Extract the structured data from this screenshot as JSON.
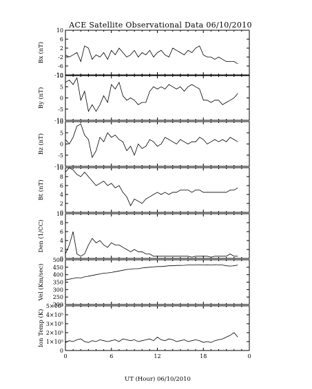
{
  "chart_data": {
    "type": "line",
    "title": "ACE Satellite Observational Data   06/10/2010",
    "xlabel": "UT (Hour)   06/10/2010",
    "xlim": [
      0,
      24
    ],
    "xticks": [
      "0",
      "6",
      "12",
      "18",
      "0"
    ],
    "data_end_hour": 22.5,
    "panels": [
      {
        "ylabel": "Bx (nT)",
        "ylim": [
          -10,
          10
        ],
        "yticks": [
          "10",
          "6",
          "2",
          "-2",
          "-6",
          "-10"
        ],
        "series": [
          {
            "x": [
              0,
              0.5,
              1,
              1.5,
              2,
              2.5,
              3,
              3.5,
              4,
              4.5,
              5,
              5.5,
              6,
              6.5,
              7,
              7.5,
              8,
              8.5,
              9,
              9.5,
              10,
              10.5,
              11,
              11.5,
              12,
              12.5,
              13,
              13.5,
              14,
              14.5,
              15,
              15.5,
              16,
              16.5,
              17,
              17.5,
              18,
              18.5,
              19,
              19.5,
              20,
              20.5,
              21,
              21.5,
              22,
              22.5
            ],
            "y": [
              -1,
              -2,
              -1,
              0,
              -4,
              3,
              2,
              -3,
              -1,
              -2,
              0,
              -3,
              1,
              -1,
              2,
              0,
              -2,
              -1,
              1,
              -2,
              0,
              -1,
              1,
              -2,
              0,
              1,
              -1,
              -2,
              2,
              1,
              0,
              -1,
              1,
              0,
              2,
              3,
              -1,
              -2,
              -2,
              -3,
              -2,
              -3,
              -4,
              -4,
              -4,
              -5
            ]
          }
        ]
      },
      {
        "ylabel": "By (nT)",
        "ylim": [
          -10,
          10
        ],
        "yticks": [
          "10",
          "5",
          "0",
          "-5",
          "-10"
        ],
        "series": [
          {
            "x": [
              0,
              0.5,
              1,
              1.5,
              2,
              2.5,
              3,
              3.5,
              4,
              4.5,
              5,
              5.5,
              6,
              6.5,
              7,
              7.5,
              8,
              8.5,
              9,
              9.5,
              10,
              10.5,
              11,
              11.5,
              12,
              12.5,
              13,
              13.5,
              14,
              14.5,
              15,
              15.5,
              16,
              16.5,
              17,
              17.5,
              18,
              18.5,
              19,
              19.5,
              20,
              20.5,
              21,
              21.5,
              22,
              22.5
            ],
            "y": [
              7,
              8,
              6,
              9,
              -1,
              3,
              -6,
              -3,
              -6,
              -3,
              1,
              -2,
              6,
              4,
              7,
              1,
              -1,
              0,
              -1,
              -3,
              -2,
              -2,
              3,
              5,
              4,
              5,
              4,
              6,
              5,
              4,
              5,
              3,
              5,
              6,
              5,
              4,
              -1,
              -1,
              -2,
              -1,
              -1,
              -3,
              -2,
              -1,
              0,
              2
            ]
          }
        ]
      },
      {
        "ylabel": "Bz (nT)",
        "ylim": [
          -10,
          10
        ],
        "yticks": [
          "10",
          "5",
          "0",
          "-5",
          "-10"
        ],
        "series": [
          {
            "x": [
              0,
              0.5,
              1,
              1.5,
              2,
              2.5,
              3,
              3.5,
              4,
              4.5,
              5,
              5.5,
              6,
              6.5,
              7,
              7.5,
              8,
              8.5,
              9,
              9.5,
              10,
              10.5,
              11,
              11.5,
              12,
              12.5,
              13,
              13.5,
              14,
              14.5,
              15,
              15.5,
              16,
              16.5,
              17,
              17.5,
              18,
              18.5,
              19,
              19.5,
              20,
              20.5,
              21,
              21.5,
              22,
              22.5
            ],
            "y": [
              2,
              0,
              3,
              8,
              9,
              4,
              2,
              -6,
              -3,
              3,
              1,
              5,
              3,
              4,
              2,
              1,
              -3,
              -1,
              -5,
              0,
              -2,
              -1,
              2,
              1,
              -1,
              0,
              3,
              2,
              1,
              0,
              2,
              1,
              0,
              1,
              1,
              3,
              2,
              0,
              1,
              2,
              1,
              2,
              1,
              3,
              2,
              1
            ]
          }
        ]
      },
      {
        "ylabel": "Bt (nT)",
        "ylim": [
          0,
          10
        ],
        "yticks": [
          "10",
          "8",
          "6",
          "4",
          "2",
          "0"
        ],
        "series": [
          {
            "x": [
              0,
              0.5,
              1,
              1.5,
              2,
              2.5,
              3,
              3.5,
              4,
              4.5,
              5,
              5.5,
              6,
              6.5,
              7,
              7.5,
              8,
              8.5,
              9,
              9.5,
              10,
              10.5,
              11,
              11.5,
              12,
              12.5,
              13,
              13.5,
              14,
              14.5,
              15,
              15.5,
              16,
              16.5,
              17,
              17.5,
              18,
              18.5,
              19,
              19.5,
              20,
              20.5,
              21,
              21.5,
              22,
              22.5
            ],
            "y": [
              9,
              10,
              9.5,
              8.5,
              8,
              9,
              8,
              7,
              6,
              6.5,
              7,
              6,
              6.5,
              5.5,
              6,
              4.5,
              3.5,
              1.5,
              3,
              2.5,
              2,
              3,
              3.5,
              4,
              4.5,
              4,
              4.5,
              4,
              4.5,
              4.5,
              5,
              5,
              5,
              4.5,
              5,
              5,
              4.5,
              4.5,
              4.5,
              4.5,
              4.5,
              4.5,
              4.5,
              5,
              5,
              5.5
            ]
          }
        ]
      },
      {
        "ylabel": "Den (1/CC)",
        "ylim": [
          0,
          10
        ],
        "yticks": [
          "10",
          "8",
          "6",
          "4",
          "2",
          "0"
        ],
        "series": [
          {
            "x": [
              0,
              0.5,
              1,
              1.5,
              2,
              2.5,
              3,
              3.5,
              4,
              4.5,
              5,
              5.5,
              6,
              6.5,
              7,
              7.5,
              8,
              8.5,
              9,
              9.5,
              10,
              10.5,
              11,
              11.5,
              12,
              12.5,
              13,
              13.5,
              14,
              14.5,
              15,
              15.5,
              16,
              16.5,
              17,
              17.5,
              18,
              18.5,
              19,
              19.5,
              20,
              20.5,
              21,
              21.5,
              22,
              22.5
            ],
            "y": [
              1,
              3,
              6,
              1,
              0.5,
              1,
              3,
              4.5,
              3.5,
              4,
              3,
              2.5,
              3.5,
              3,
              3,
              2.5,
              2,
              1.5,
              2,
              1.5,
              1.5,
              1,
              1,
              0.5,
              0.5,
              0.5,
              0.5,
              0.5,
              0.5,
              0.5,
              0.5,
              0.5,
              0.5,
              0.3,
              0.5,
              0.5,
              0.5,
              0.5,
              0.3,
              0.5,
              0.5,
              0.5,
              0.5,
              1,
              0.5,
              0.5
            ]
          }
        ]
      },
      {
        "ylabel": "Vel (Km/sec)",
        "ylim": [
          200,
          500
        ],
        "yticks": [
          "500",
          "450",
          "400",
          "350",
          "300",
          "250",
          "200"
        ],
        "series": [
          {
            "x": [
              0,
              0.5,
              1,
              1.5,
              2,
              2.5,
              3,
              3.5,
              4,
              4.5,
              5,
              5.5,
              6,
              6.5,
              7,
              7.5,
              8,
              8.5,
              9,
              9.5,
              10,
              10.5,
              11,
              11.5,
              12,
              12.5,
              13,
              13.5,
              14,
              14.5,
              15,
              15.5,
              16,
              16.5,
              17,
              17.5,
              18,
              18.5,
              19,
              19.5,
              20,
              20.5,
              21,
              21.5,
              22,
              22.5
            ],
            "y": [
              365,
              370,
              375,
              380,
              378,
              385,
              390,
              395,
              400,
              405,
              410,
              412,
              415,
              420,
              425,
              430,
              435,
              437,
              440,
              440,
              445,
              448,
              450,
              452,
              455,
              455,
              457,
              460,
              460,
              462,
              462,
              463,
              465,
              465,
              465,
              467,
              465,
              466,
              465,
              467,
              466,
              465,
              460,
              458,
              460,
              465
            ]
          }
        ]
      },
      {
        "ylabel": "Ion Temp (K)",
        "ylim": [
          0,
          500000
        ],
        "yticks": [
          "5×10⁵",
          "4×10⁵",
          "3×10⁵",
          "2×10⁵",
          "1×10⁵",
          "0"
        ],
        "series": [
          {
            "x": [
              0,
              0.5,
              1,
              1.5,
              2,
              2.5,
              3,
              3.5,
              4,
              4.5,
              5,
              5.5,
              6,
              6.5,
              7,
              7.5,
              8,
              8.5,
              9,
              9.5,
              10,
              10.5,
              11,
              11.5,
              12,
              12.5,
              13,
              13.5,
              14,
              14.5,
              15,
              15.5,
              16,
              16.5,
              17,
              17.5,
              18,
              18.5,
              19,
              19.5,
              20,
              20.5,
              21,
              21.5,
              22,
              22.5
            ],
            "y": [
              90000,
              110000,
              100000,
              120000,
              130000,
              100000,
              90000,
              110000,
              100000,
              120000,
              110000,
              100000,
              110000,
              120000,
              100000,
              130000,
              120000,
              110000,
              120000,
              100000,
              110000,
              120000,
              130000,
              110000,
              150000,
              120000,
              110000,
              130000,
              120000,
              100000,
              110000,
              120000,
              100000,
              110000,
              120000,
              110000,
              90000,
              100000,
              90000,
              110000,
              120000,
              130000,
              150000,
              170000,
              200000,
              150000
            ]
          }
        ]
      }
    ]
  }
}
